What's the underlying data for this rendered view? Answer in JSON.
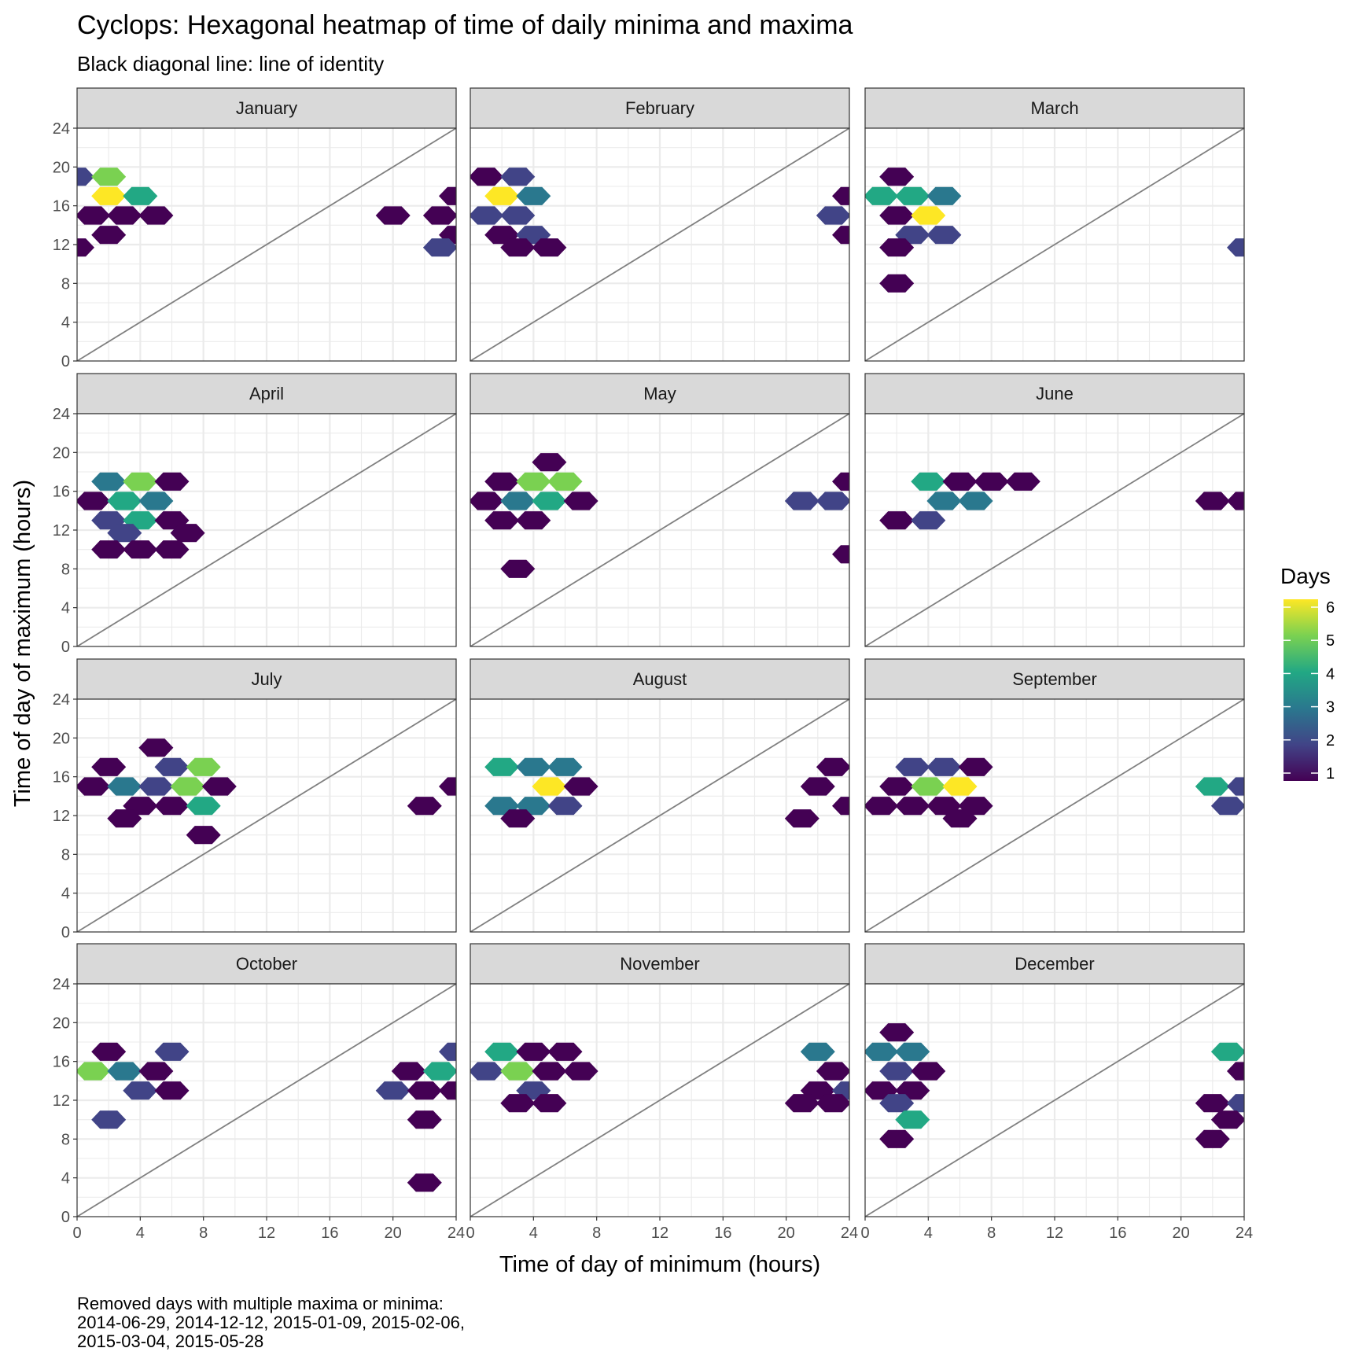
{
  "chart_data": {
    "type": "heatmap",
    "title": "Cyclops: Hexagonal heatmap of time of daily minima and maxima",
    "subtitle": "Black diagonal line: line of identity",
    "xlabel": "Time of day of minimum (hours)",
    "ylabel": "Time of day of maximum (hours)",
    "xlim": [
      0,
      24
    ],
    "ylim": [
      0,
      24
    ],
    "x_ticks": [
      0,
      4,
      8,
      12,
      16,
      20,
      24
    ],
    "y_ticks": [
      0,
      4,
      8,
      12,
      16,
      20,
      24
    ],
    "grid": true,
    "legend": {
      "title": "Days",
      "position": "right",
      "min": 1,
      "max": 6,
      "ticks": [
        1,
        2,
        3,
        4,
        5,
        6
      ],
      "colormap": [
        "#440154",
        "#414487",
        "#2a788e",
        "#22a884",
        "#7ad151",
        "#fde725"
      ]
    },
    "reference_line": {
      "label": "line of identity",
      "from": [
        0,
        0
      ],
      "to": [
        24,
        24
      ],
      "color": "#808080"
    },
    "caption_lines": [
      "Removed days with multiple maxima or minima:",
      "2014-06-29, 2014-12-12, 2015-01-09, 2015-02-06,",
      "2015-03-04, 2015-05-28"
    ],
    "panels": [
      {
        "month": "January",
        "cells": [
          [
            0,
            19,
            2
          ],
          [
            2,
            19,
            5
          ],
          [
            2,
            17,
            6
          ],
          [
            4,
            17,
            4
          ],
          [
            1,
            15,
            1
          ],
          [
            3,
            15,
            1
          ],
          [
            5,
            15,
            1
          ],
          [
            2,
            13,
            1
          ],
          [
            0,
            11.7,
            1
          ],
          [
            20,
            15,
            1
          ],
          [
            23,
            15,
            1
          ],
          [
            24,
            17,
            1
          ],
          [
            24,
            13,
            1
          ],
          [
            23,
            11.7,
            2
          ]
        ]
      },
      {
        "month": "February",
        "cells": [
          [
            1,
            19,
            1
          ],
          [
            3,
            19,
            2
          ],
          [
            2,
            17,
            6
          ],
          [
            4,
            17,
            3
          ],
          [
            1,
            15,
            2
          ],
          [
            3,
            15,
            2
          ],
          [
            2,
            13,
            1
          ],
          [
            4,
            13,
            2
          ],
          [
            3,
            11.7,
            1
          ],
          [
            5,
            11.7,
            1
          ],
          [
            24,
            17,
            1
          ],
          [
            23,
            15,
            2
          ],
          [
            24,
            13,
            1
          ]
        ]
      },
      {
        "month": "March",
        "cells": [
          [
            2,
            19,
            1
          ],
          [
            1,
            17,
            4
          ],
          [
            3,
            17,
            4
          ],
          [
            5,
            17,
            3
          ],
          [
            2,
            15,
            1
          ],
          [
            4,
            15,
            6
          ],
          [
            3,
            13,
            2
          ],
          [
            5,
            13,
            2
          ],
          [
            2,
            11.7,
            1
          ],
          [
            2,
            8,
            1
          ],
          [
            24,
            11.7,
            2
          ]
        ]
      },
      {
        "month": "April",
        "cells": [
          [
            2,
            17,
            3
          ],
          [
            4,
            17,
            5
          ],
          [
            6,
            17,
            1
          ],
          [
            1,
            15,
            1
          ],
          [
            3,
            15,
            4
          ],
          [
            5,
            15,
            3
          ],
          [
            2,
            13,
            2
          ],
          [
            4,
            13,
            4
          ],
          [
            6,
            13,
            1
          ],
          [
            3,
            11.7,
            2
          ],
          [
            7,
            11.7,
            1
          ],
          [
            2,
            10,
            1
          ],
          [
            4,
            10,
            1
          ],
          [
            6,
            10,
            1
          ]
        ]
      },
      {
        "month": "May",
        "cells": [
          [
            5,
            19,
            1
          ],
          [
            2,
            17,
            1
          ],
          [
            4,
            17,
            5
          ],
          [
            6,
            17,
            5
          ],
          [
            1,
            15,
            1
          ],
          [
            3,
            15,
            3
          ],
          [
            5,
            15,
            4
          ],
          [
            7,
            15,
            1
          ],
          [
            2,
            13,
            1
          ],
          [
            4,
            13,
            1
          ],
          [
            3,
            8,
            1
          ],
          [
            21,
            15,
            2
          ],
          [
            23,
            15,
            2
          ],
          [
            24,
            17,
            1
          ],
          [
            24,
            9.5,
            1
          ]
        ]
      },
      {
        "month": "June",
        "cells": [
          [
            4,
            17,
            4
          ],
          [
            6,
            17,
            1
          ],
          [
            8,
            17,
            1
          ],
          [
            10,
            17,
            1
          ],
          [
            5,
            15,
            3
          ],
          [
            7,
            15,
            3
          ],
          [
            2,
            13,
            1
          ],
          [
            4,
            13,
            2
          ],
          [
            22,
            15,
            1
          ],
          [
            24,
            15,
            1
          ]
        ]
      },
      {
        "month": "July",
        "cells": [
          [
            5,
            19,
            1
          ],
          [
            2,
            17,
            1
          ],
          [
            6,
            17,
            2
          ],
          [
            8,
            17,
            5
          ],
          [
            1,
            15,
            1
          ],
          [
            3,
            15,
            3
          ],
          [
            5,
            15,
            2
          ],
          [
            7,
            15,
            5
          ],
          [
            9,
            15,
            1
          ],
          [
            4,
            13,
            1
          ],
          [
            6,
            13,
            1
          ],
          [
            8,
            13,
            4
          ],
          [
            3,
            11.7,
            1
          ],
          [
            8,
            10,
            1
          ],
          [
            24,
            15,
            1
          ],
          [
            22,
            13,
            1
          ]
        ]
      },
      {
        "month": "August",
        "cells": [
          [
            2,
            17,
            4
          ],
          [
            4,
            17,
            3
          ],
          [
            6,
            17,
            3
          ],
          [
            5,
            15,
            6
          ],
          [
            7,
            15,
            1
          ],
          [
            2,
            13,
            3
          ],
          [
            4,
            13,
            3
          ],
          [
            6,
            13,
            2
          ],
          [
            3,
            11.7,
            1
          ],
          [
            23,
            17,
            1
          ],
          [
            22,
            15,
            1
          ],
          [
            24,
            13,
            1
          ],
          [
            21,
            11.7,
            1
          ]
        ]
      },
      {
        "month": "September",
        "cells": [
          [
            3,
            17,
            2
          ],
          [
            5,
            17,
            2
          ],
          [
            7,
            17,
            1
          ],
          [
            2,
            15,
            1
          ],
          [
            4,
            15,
            5
          ],
          [
            6,
            15,
            6
          ],
          [
            1,
            13,
            1
          ],
          [
            3,
            13,
            1
          ],
          [
            5,
            13,
            1
          ],
          [
            7,
            13,
            1
          ],
          [
            6,
            11.7,
            1
          ],
          [
            22,
            15,
            4
          ],
          [
            24,
            15,
            2
          ],
          [
            23,
            13,
            2
          ]
        ]
      },
      {
        "month": "October",
        "cells": [
          [
            2,
            17,
            1
          ],
          [
            6,
            17,
            2
          ],
          [
            1,
            15,
            5
          ],
          [
            3,
            15,
            3
          ],
          [
            5,
            15,
            1
          ],
          [
            4,
            13,
            2
          ],
          [
            6,
            13,
            1
          ],
          [
            2,
            10,
            2
          ],
          [
            24,
            17,
            2
          ],
          [
            21,
            15,
            1
          ],
          [
            23,
            15,
            4
          ],
          [
            20,
            13,
            2
          ],
          [
            22,
            13,
            1
          ],
          [
            24,
            13,
            1
          ],
          [
            22,
            10,
            1
          ],
          [
            22,
            3.5,
            1
          ]
        ]
      },
      {
        "month": "November",
        "cells": [
          [
            2,
            17,
            4
          ],
          [
            4,
            17,
            1
          ],
          [
            6,
            17,
            1
          ],
          [
            1,
            15,
            2
          ],
          [
            3,
            15,
            5
          ],
          [
            5,
            15,
            1
          ],
          [
            7,
            15,
            1
          ],
          [
            4,
            13,
            2
          ],
          [
            3,
            11.7,
            1
          ],
          [
            5,
            11.7,
            1
          ],
          [
            22,
            17,
            3
          ],
          [
            23,
            15,
            1
          ],
          [
            22,
            13,
            1
          ],
          [
            24,
            13,
            2
          ],
          [
            21,
            11.7,
            1
          ],
          [
            23,
            11.7,
            1
          ]
        ]
      },
      {
        "month": "December",
        "cells": [
          [
            2,
            19,
            1
          ],
          [
            1,
            17,
            3
          ],
          [
            3,
            17,
            3
          ],
          [
            2,
            15,
            2
          ],
          [
            4,
            15,
            1
          ],
          [
            1,
            13,
            1
          ],
          [
            3,
            13,
            1
          ],
          [
            2,
            11.7,
            2
          ],
          [
            3,
            10,
            4
          ],
          [
            2,
            8,
            1
          ],
          [
            23,
            17,
            4
          ],
          [
            24,
            15,
            1
          ],
          [
            22,
            11.7,
            1
          ],
          [
            24,
            11.7,
            2
          ],
          [
            23,
            10,
            1
          ],
          [
            22,
            8,
            1
          ]
        ]
      }
    ]
  }
}
